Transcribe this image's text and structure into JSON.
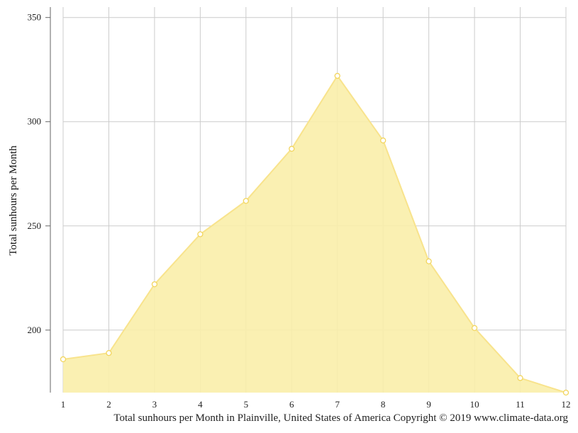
{
  "chart_data": {
    "type": "area",
    "title": "",
    "caption": "Total sunhours per Month in Plainville, United States of America Copyright © 2019 www.climate-data.org",
    "xlabel": "",
    "ylabel": "Total sunhours per Month",
    "x": [
      1,
      2,
      3,
      4,
      5,
      6,
      7,
      8,
      9,
      10,
      11,
      12
    ],
    "series": [
      {
        "values": [
          186,
          189,
          222,
          246,
          262,
          287,
          322,
          291,
          233,
          201,
          177,
          170
        ]
      }
    ],
    "ylim": [
      170,
      355
    ],
    "yticks": [
      200,
      250,
      300,
      350
    ],
    "grid": true,
    "legend": "none",
    "colors": {
      "fill": "#faeeaa",
      "line": "#f8e38c",
      "marker_stroke": "#f2d55e",
      "grid": "#cccccc",
      "axis": "#666666"
    }
  }
}
